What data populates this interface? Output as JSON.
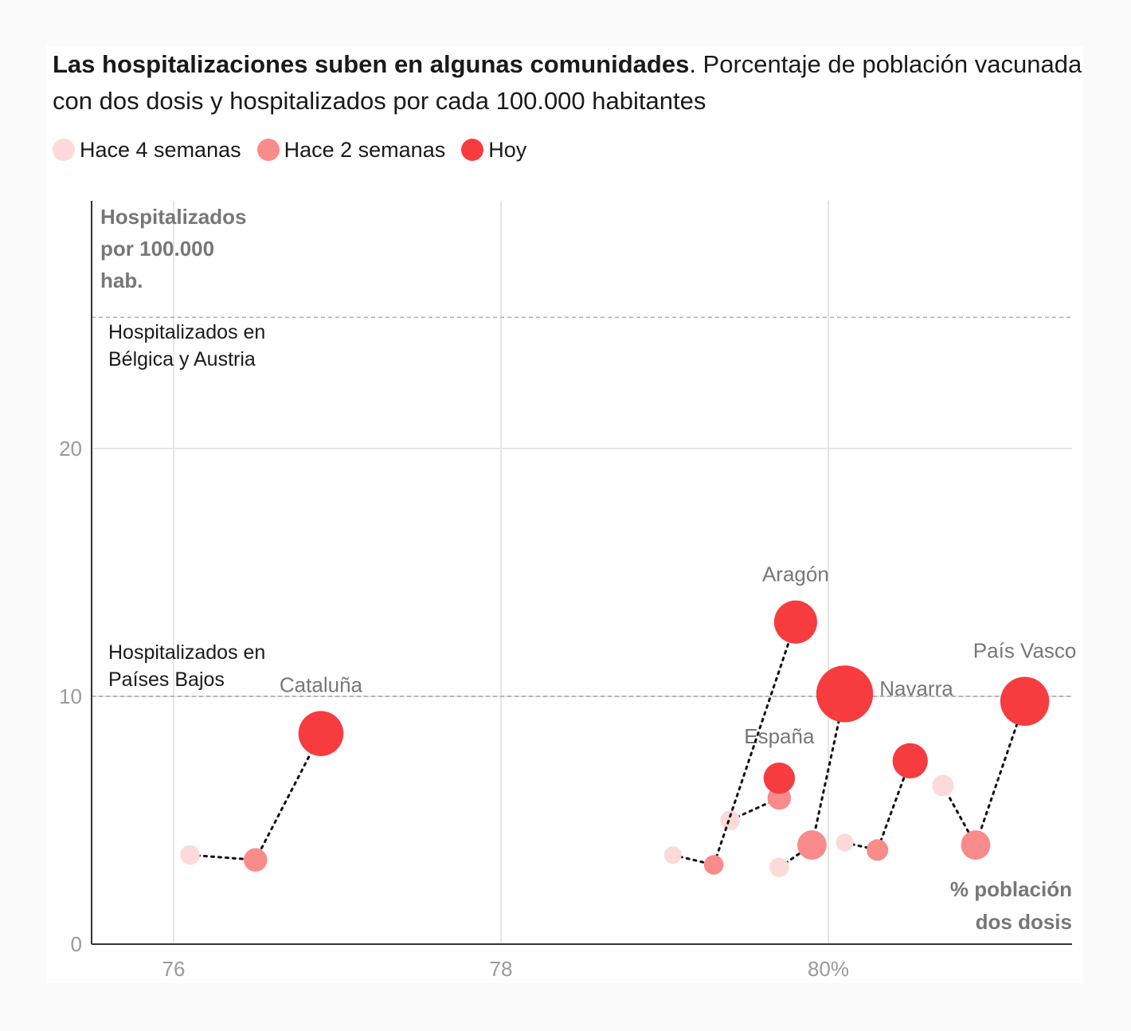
{
  "header": {
    "title_bold": "Las hospitalizaciones suben en algunas comunidades",
    "title_rest": ". Porcentaje de población vacunada con dos dosis y hospitalizados por cada 100.000 habitantes"
  },
  "legend": [
    {
      "label": "Hace 4 semanas",
      "color": "#fddada"
    },
    {
      "label": "Hace 2 semanas",
      "color": "#f98b8b"
    },
    {
      "label": "Hoy",
      "color": "#f73c40"
    }
  ],
  "colors": {
    "week4": "#fddada",
    "week2": "#f98b8b",
    "today": "#f73c40",
    "grid": "#e6e6e6",
    "axis": "#333333",
    "tick_text": "#9a9a9a",
    "label_text": "#777777"
  },
  "chart_data": {
    "type": "scatter",
    "x_axis": {
      "label_lines": [
        "% población",
        "dos dosis"
      ],
      "range": [
        75.5,
        81.5
      ],
      "ticks": [
        76,
        78,
        80
      ],
      "tick_labels": [
        "76",
        "78",
        "80%"
      ]
    },
    "y_axis": {
      "label_lines": [
        "Hospitalizados",
        "por 100.000",
        "hab."
      ],
      "range": [
        0,
        26
      ],
      "ticks": [
        0,
        10,
        20
      ],
      "tick_labels": [
        "0",
        "10",
        "20"
      ]
    },
    "grid": true,
    "reference_lines": [
      {
        "y": 25.3,
        "label_lines": [
          "Hospitalizados en",
          "Bélgica y Austria"
        ]
      },
      {
        "y": 10,
        "label_lines": [
          "Hospitalizados en",
          "Países Bajos"
        ]
      }
    ],
    "series": [
      {
        "name": "Cataluña",
        "points": [
          {
            "period": "Hace 4 semanas",
            "x": 76.1,
            "y": 3.6,
            "size": 1.0
          },
          {
            "period": "Hace 2 semanas",
            "x": 76.5,
            "y": 3.4,
            "size": 1.2
          },
          {
            "period": "Hoy",
            "x": 76.9,
            "y": 8.5,
            "size": 2.3
          }
        ]
      },
      {
        "name": "España",
        "points": [
          {
            "period": "Hace 4 semanas",
            "x": 79.4,
            "y": 5.0,
            "size": 1.0
          },
          {
            "period": "Hace 2 semanas",
            "x": 79.7,
            "y": 5.9,
            "size": 1.2
          },
          {
            "period": "Hoy",
            "x": 79.7,
            "y": 6.7,
            "size": 1.6
          }
        ]
      },
      {
        "name": "Aragón",
        "points": [
          {
            "period": "Hace 4 semanas",
            "x": 79.05,
            "y": 3.6,
            "size": 0.9
          },
          {
            "period": "Hace 2 semanas",
            "x": 79.3,
            "y": 3.2,
            "size": 1.0
          },
          {
            "period": "Hoy",
            "x": 79.8,
            "y": 13.0,
            "size": 2.2
          }
        ]
      },
      {
        "name": "Navarra",
        "points": [
          {
            "period": "Hace 4 semanas",
            "x": 79.7,
            "y": 3.1,
            "size": 1.0
          },
          {
            "period": "Hace 2 semanas",
            "x": 79.9,
            "y": 4.0,
            "size": 1.5
          },
          {
            "period": "Hoy",
            "x": 80.1,
            "y": 10.1,
            "size": 2.9
          }
        ]
      },
      {
        "name": "",
        "points": [
          {
            "period": "Hace 4 semanas",
            "x": 80.1,
            "y": 4.1,
            "size": 0.9
          },
          {
            "period": "Hace 2 semanas",
            "x": 80.3,
            "y": 3.8,
            "size": 1.1
          },
          {
            "period": "Hoy",
            "x": 80.5,
            "y": 7.4,
            "size": 1.8
          }
        ]
      },
      {
        "name": "País Vasco",
        "points": [
          {
            "period": "Hace 4 semanas",
            "x": 80.7,
            "y": 6.4,
            "size": 1.1
          },
          {
            "period": "Hace 2 semanas",
            "x": 80.9,
            "y": 4.0,
            "size": 1.5
          },
          {
            "period": "Hoy",
            "x": 81.2,
            "y": 9.8,
            "size": 2.5
          }
        ]
      }
    ]
  }
}
